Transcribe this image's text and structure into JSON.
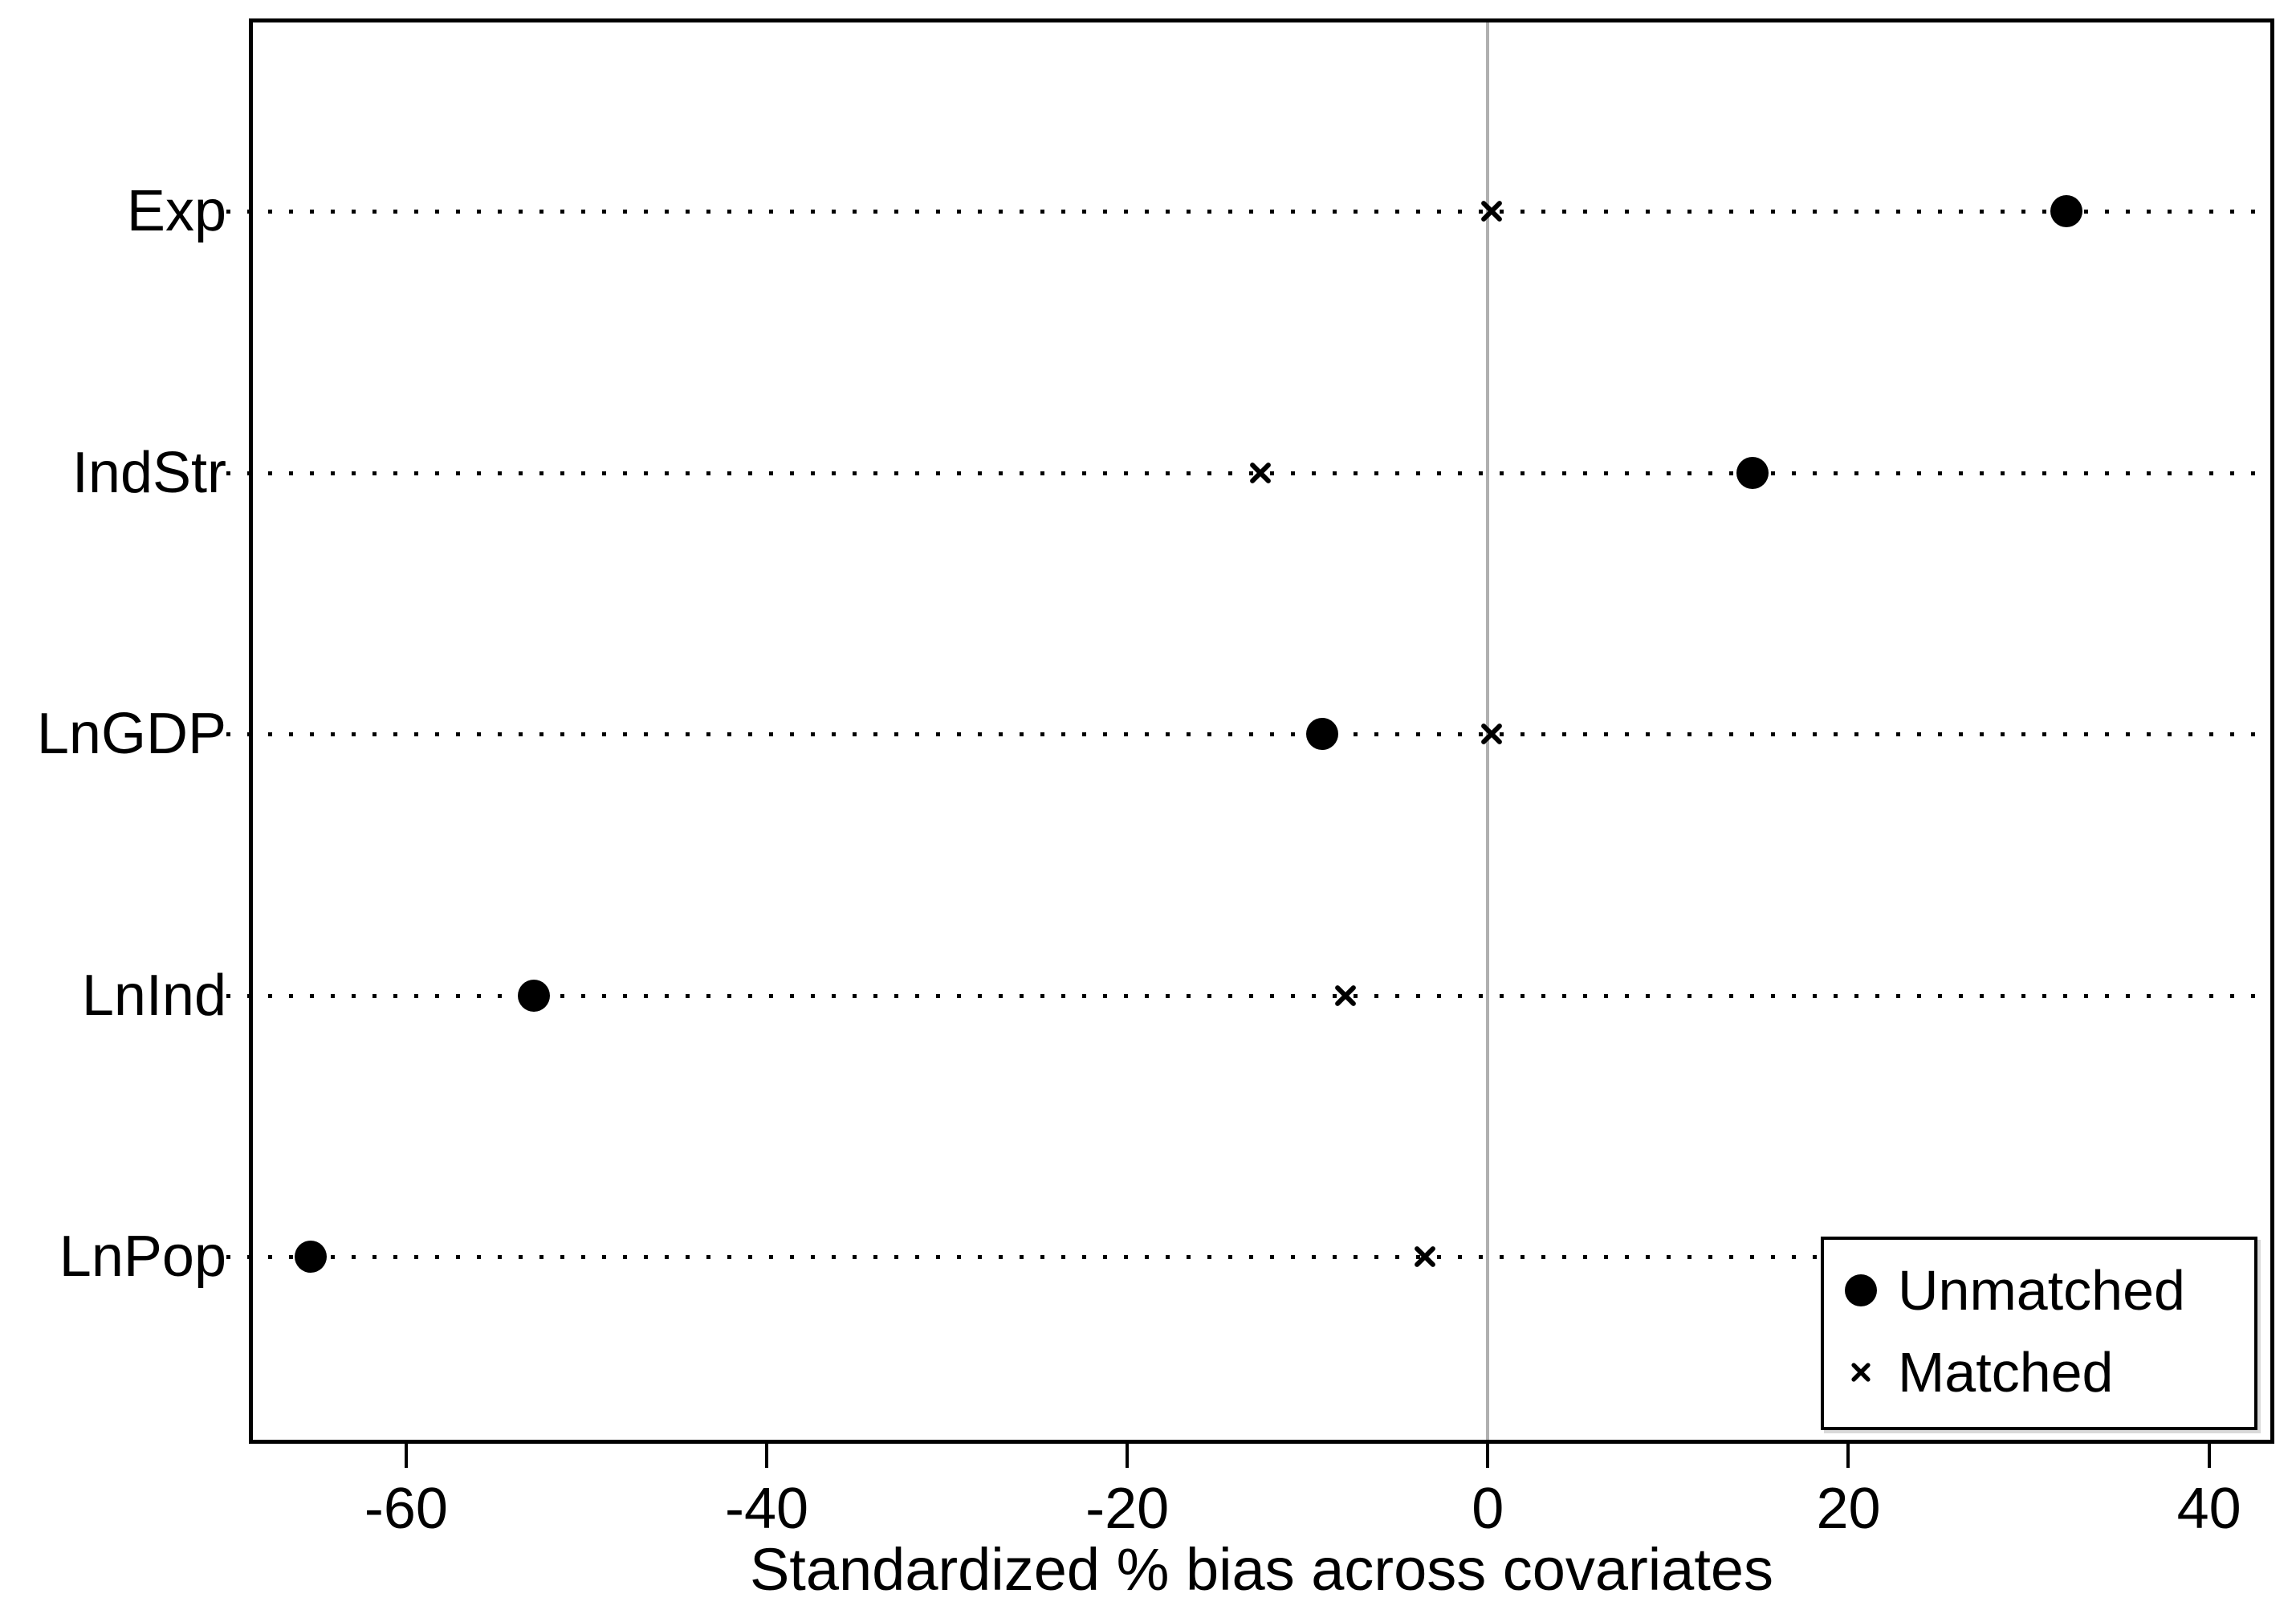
{
  "figure": {
    "background": "#ffffff"
  },
  "chart_data": {
    "type": "scatter",
    "title": "",
    "xlabel": "Standardized % bias across covariates",
    "ylabel": "",
    "categories": [
      "Exp",
      "IndStr",
      "LnGDP",
      "LnInd",
      "LnPop"
    ],
    "series": [
      {
        "name": "Unmatched",
        "marker": "circle",
        "values": [
          32.1,
          14.7,
          -9.2,
          -52.9,
          -65.3
        ]
      },
      {
        "name": "Matched",
        "marker": "x",
        "values": [
          0.2,
          -12.6,
          0.2,
          -7.9,
          -3.5
        ]
      }
    ],
    "xlim": [
      -68.5,
      43.4
    ],
    "xticks": [
      -60,
      -40,
      -20,
      0,
      20,
      40
    ],
    "x_refline": 0,
    "grid": "horizontal-dotted",
    "legend_position": "bottom-right",
    "colors": {
      "marker": "#000000",
      "refline": "#b0b0b0",
      "frame": "#000000",
      "background": "#ffffff"
    }
  }
}
